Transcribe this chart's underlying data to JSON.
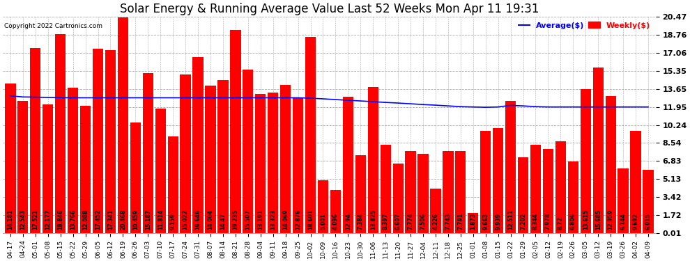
{
  "title": "Solar Energy & Running Average Value Last 52 Weeks Mon Apr 11 19:31",
  "copyright": "Copyright 2022 Cartronics.com",
  "yticks": [
    0.01,
    1.72,
    3.42,
    5.13,
    6.83,
    8.54,
    10.24,
    11.95,
    13.65,
    15.35,
    17.06,
    18.76,
    20.47
  ],
  "ylim": [
    0.01,
    20.47
  ],
  "bar_color": "#ff0000",
  "avg_color": "#0000ff",
  "legend_avg_color": "#0000ff",
  "legend_weekly_color": "#ff0000",
  "categories": [
    "04-17",
    "04-24",
    "05-01",
    "05-08",
    "05-15",
    "05-22",
    "05-29",
    "06-05",
    "06-12",
    "06-19",
    "06-26",
    "07-03",
    "07-10",
    "07-17",
    "07-24",
    "07-31",
    "08-07",
    "08-14",
    "08-21",
    "08-28",
    "09-04",
    "09-11",
    "09-18",
    "09-25",
    "10-02",
    "10-09",
    "10-16",
    "10-23",
    "10-30",
    "11-06",
    "11-13",
    "11-20",
    "11-27",
    "12-04",
    "12-11",
    "12-18",
    "12-25",
    "01-01",
    "01-08",
    "01-15",
    "01-22",
    "01-29",
    "02-05",
    "02-12",
    "02-19",
    "02-26",
    "03-05",
    "03-12",
    "03-19",
    "03-26",
    "04-02",
    "04-09"
  ],
  "bar_values": [
    14.181,
    12.543,
    17.521,
    12.177,
    18.846,
    13.766,
    12.088,
    17.452,
    17.341,
    20.468,
    10.459,
    15.187,
    11.814,
    9.159,
    15.022,
    16.646,
    14.004,
    14.47,
    19.235,
    15.507,
    13.191,
    13.323,
    14.069,
    12.876,
    18.601,
    5.001,
    4.096,
    12.94,
    7.384,
    13.825,
    8.397,
    6.607,
    7.774,
    7.506,
    4.226,
    7.743,
    7.791,
    1.873,
    9.663,
    9.939,
    12.511,
    7.202,
    8.344,
    7.978,
    8.72,
    6.806,
    13.615,
    15.685,
    12.959,
    6.144,
    9.692,
    6.015
  ],
  "avg_values": [
    13.0,
    12.9,
    12.88,
    12.85,
    12.83,
    12.82,
    12.82,
    12.82,
    12.82,
    12.82,
    12.82,
    12.82,
    12.82,
    12.82,
    12.82,
    12.82,
    12.82,
    12.82,
    12.82,
    12.82,
    12.82,
    12.82,
    12.82,
    12.82,
    12.78,
    12.72,
    12.65,
    12.58,
    12.52,
    12.45,
    12.38,
    12.32,
    12.25,
    12.18,
    12.12,
    12.05,
    11.98,
    11.95,
    11.92,
    11.95,
    12.1,
    12.05,
    11.98,
    11.95,
    11.95,
    11.95,
    11.95,
    11.95,
    11.95,
    11.95,
    11.95,
    11.95
  ],
  "background_color": "#ffffff",
  "grid_color": "#aaaaaa",
  "title_fontsize": 12,
  "tick_fontsize": 8,
  "xlabel_fontsize": 6.5,
  "bar_label_fontsize": 5.5
}
